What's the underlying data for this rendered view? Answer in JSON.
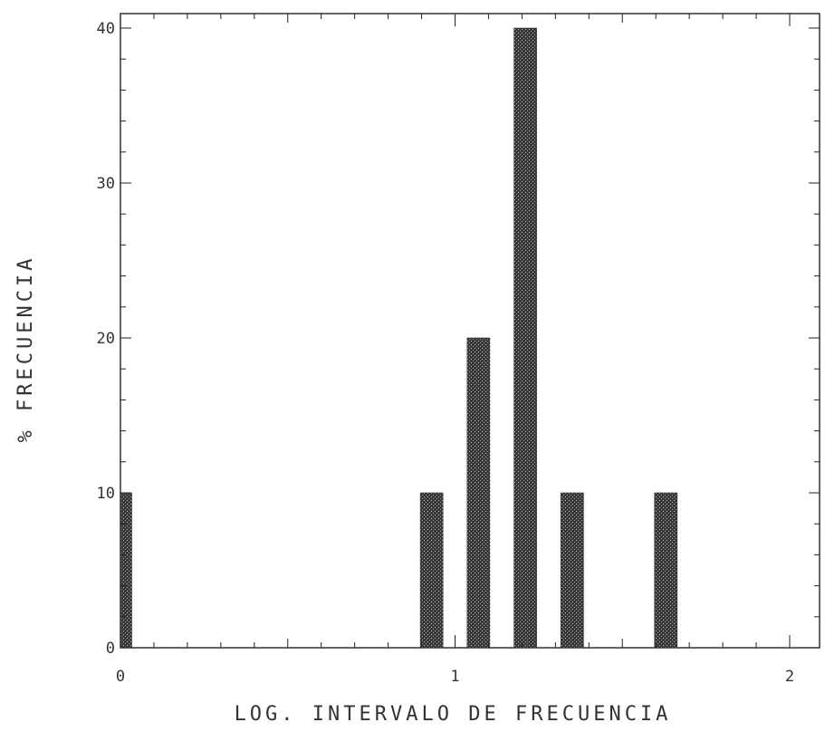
{
  "chart_data": {
    "type": "bar",
    "title": "",
    "xlabel": "LOG. INTERVALO DE FRECUENCIA",
    "ylabel": "% FRECUENCIA",
    "xlim": [
      0,
      2
    ],
    "ylim": [
      0,
      40
    ],
    "x_ticks": [
      {
        "value": 0,
        "label": "0"
      },
      {
        "value": 1,
        "label": "1"
      },
      {
        "value": 2,
        "label": "2"
      }
    ],
    "y_ticks": [
      {
        "value": 0,
        "label": "0"
      },
      {
        "value": 10,
        "label": "10"
      },
      {
        "value": 20,
        "label": "20"
      },
      {
        "value": 30,
        "label": "30"
      },
      {
        "value": 40,
        "label": "40"
      }
    ],
    "x": [
      0.0,
      0.93,
      1.07,
      1.21,
      1.35,
      1.63
    ],
    "values": [
      10,
      10,
      20,
      40,
      10,
      10
    ],
    "grid": false,
    "legend": "none",
    "colors": {
      "bar": "#3a3a3a",
      "axis": "#222222"
    }
  }
}
